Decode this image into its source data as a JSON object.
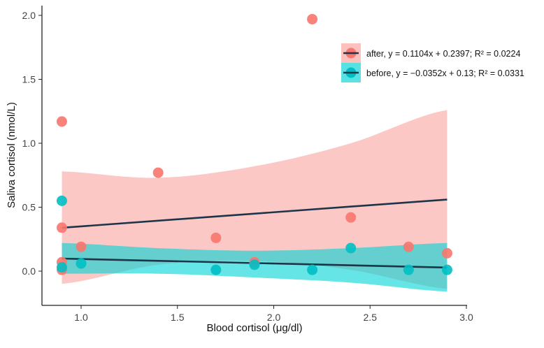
{
  "chart_data": {
    "type": "scatter",
    "title": "",
    "xlabel": "Blood cortisol (μg/dl)",
    "ylabel": "Saliva cortisol (nmol/L)",
    "xlim": [
      0.8,
      3.0
    ],
    "ylim": [
      -0.27,
      2.1
    ],
    "xticks": [
      1.0,
      1.5,
      2.0,
      2.5,
      3.0
    ],
    "xtick_labels": [
      "1.0",
      "1.5",
      "2.0",
      "2.5",
      "3.0"
    ],
    "yticks": [
      0.0,
      0.5,
      1.0,
      1.5,
      2.0
    ],
    "ytick_labels": [
      "0.0",
      "0.5",
      "1.0",
      "1.5",
      "2.0"
    ],
    "grid": false,
    "legend_position": "top-right",
    "line_color": "#1d3549",
    "series": [
      {
        "name": "after",
        "legend": "after, y = 0.1104x + 0.2397; R² = 0.0224",
        "color": "#F8766D",
        "band_color": "#F8766D",
        "slope": 0.1104,
        "intercept": 0.2397,
        "x": [
          0.9,
          0.9,
          0.9,
          0.9,
          1.0,
          1.4,
          1.7,
          1.9,
          2.2,
          2.4,
          2.7,
          2.9
        ],
        "y": [
          1.17,
          0.34,
          0.07,
          0.01,
          0.19,
          0.77,
          0.26,
          0.07,
          1.97,
          0.42,
          0.19,
          0.14
        ],
        "band": {
          "x": [
            0.9,
            1.4,
            1.9,
            2.4,
            2.9
          ],
          "upper": [
            0.78,
            0.73,
            0.82,
            1.0,
            1.26
          ],
          "lower": [
            -0.1,
            0.05,
            0.08,
            0.01,
            -0.14
          ]
        }
      },
      {
        "name": "before",
        "legend": "before, y = −0.0352x + 0.13; R² = 0.0331",
        "color": "#00BFC4",
        "band_color": "#00D3D6",
        "slope": -0.0352,
        "intercept": 0.13,
        "x": [
          0.9,
          0.9,
          1.0,
          1.7,
          1.9,
          2.2,
          2.4,
          2.7,
          2.9
        ],
        "y": [
          0.55,
          0.03,
          0.06,
          0.01,
          0.05,
          0.01,
          0.18,
          0.01,
          0.01
        ],
        "band": {
          "x": [
            0.9,
            1.4,
            1.9,
            2.4,
            2.9
          ],
          "upper": [
            0.22,
            0.18,
            0.16,
            0.18,
            0.22
          ],
          "lower": [
            -0.02,
            -0.02,
            -0.05,
            -0.09,
            -0.16
          ]
        }
      }
    ]
  }
}
